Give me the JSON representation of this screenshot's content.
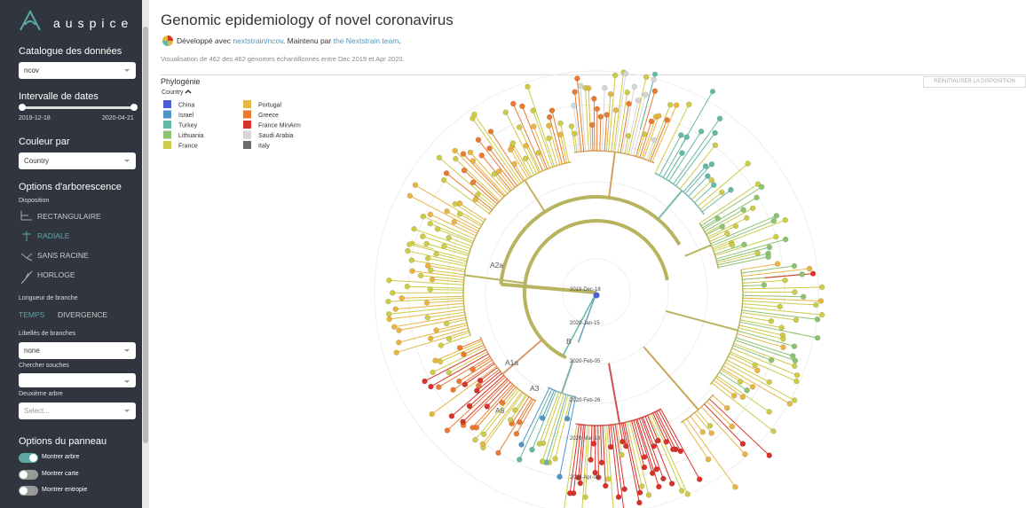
{
  "sidebar": {
    "logo": "auspice",
    "dataset": {
      "label": "Catalogue des données",
      "value": "ncov"
    },
    "date_range": {
      "label": "Intervalle de dates",
      "start": "2019-12-18",
      "end": "2020-04-21"
    },
    "color_by": {
      "label": "Couleur par",
      "value": "Country"
    },
    "tree_options": {
      "title": "Options d'arborescence",
      "layout_label": "Disposition",
      "layouts": [
        "RECTANGULAIRE",
        "RADIALE",
        "SANS RACINE",
        "HORLOGE"
      ]
    },
    "branch_length": {
      "label": "Longueur de branche",
      "options": [
        "TEMPS",
        "DIVERGENCE"
      ]
    },
    "branch_labels": {
      "label": "Libellés de branches",
      "value": "none"
    },
    "search": {
      "label": "Chercher souches"
    },
    "second_tree": {
      "label": "Deuxième arbre",
      "placeholder": "Select..."
    },
    "panel_options": {
      "title": "Options du panneau",
      "toggles": [
        "Montrer arbre",
        "Montrer carte",
        "Montrer entropie"
      ]
    }
  },
  "header": {
    "title": "Genomic epidemiology of novel coronavirus",
    "byline_prefix": "Développé avec",
    "byline_link1": "nextstrain/ncov",
    "byline_mid": ". Maintenu par",
    "byline_link2": "the Nextstrain team",
    "byline_end": ".",
    "summary": "Visualisation de 462 des 462 génomes échantillonnés entre Dec 2019 et Apr 2020."
  },
  "panel": {
    "title": "Phylogénie",
    "reset": "RÉINITIALISER LA DISPOSITION",
    "legend": {
      "title": "Country",
      "items": [
        {
          "name": "China",
          "color": "#4b5fd6"
        },
        {
          "name": "Israel",
          "color": "#4f95c8"
        },
        {
          "name": "Turkey",
          "color": "#62b9a6"
        },
        {
          "name": "Lithuania",
          "color": "#8dc26f"
        },
        {
          "name": "France",
          "color": "#cccb4a"
        },
        {
          "name": "Portugal",
          "color": "#e7b544"
        },
        {
          "name": "Greece",
          "color": "#e97a30"
        },
        {
          "name": "France MinArm",
          "color": "#d8322a"
        },
        {
          "name": "Saudi Arabia",
          "color": "#d6d6d6"
        },
        {
          "name": "Italy",
          "color": "#6b6b6b"
        }
      ]
    },
    "clade_labels": [
      "A2a",
      "A1a",
      "A3",
      "A6",
      "B"
    ],
    "time_labels": [
      "2019-Dec-18",
      "2020-Jan-15",
      "2020-Feb-05",
      "2020-Feb-26",
      "2020-Mar-18",
      "2020-Apr-08"
    ]
  }
}
